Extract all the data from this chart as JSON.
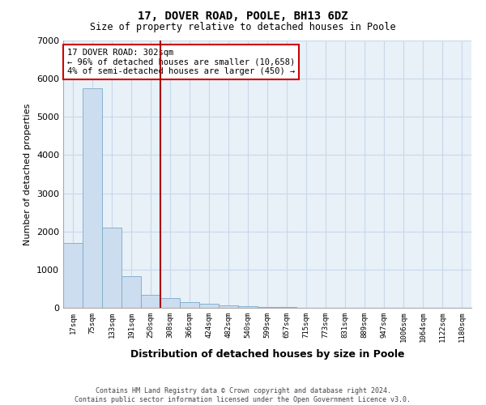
{
  "title1": "17, DOVER ROAD, POOLE, BH13 6DZ",
  "title2": "Size of property relative to detached houses in Poole",
  "xlabel": "Distribution of detached houses by size in Poole",
  "ylabel": "Number of detached properties",
  "bar_color": "#ccddef",
  "bar_edge_color": "#7aaac8",
  "vline_color": "#aa0000",
  "vline_x": 4.5,
  "annotation_text": "17 DOVER ROAD: 302sqm\n← 96% of detached houses are smaller (10,658)\n4% of semi-detached houses are larger (450) →",
  "annotation_box_color": "#cc0000",
  "footer": "Contains HM Land Registry data © Crown copyright and database right 2024.\nContains public sector information licensed under the Open Government Licence v3.0.",
  "categories": [
    "17sqm",
    "75sqm",
    "133sqm",
    "191sqm",
    "250sqm",
    "308sqm",
    "366sqm",
    "424sqm",
    "482sqm",
    "540sqm",
    "599sqm",
    "657sqm",
    "715sqm",
    "773sqm",
    "831sqm",
    "889sqm",
    "947sqm",
    "1006sqm",
    "1064sqm",
    "1122sqm",
    "1180sqm"
  ],
  "values": [
    1700,
    5750,
    2100,
    820,
    350,
    255,
    155,
    105,
    55,
    35,
    20,
    15,
    10,
    7,
    4,
    3,
    2,
    1,
    1,
    1,
    0
  ],
  "ylim": [
    0,
    7000
  ],
  "yticks": [
    0,
    1000,
    2000,
    3000,
    4000,
    5000,
    6000,
    7000
  ],
  "grid_color": "#c8d8e8",
  "background_color": "#e8f0f8",
  "fig_width": 6.0,
  "fig_height": 5.0,
  "dpi": 100
}
